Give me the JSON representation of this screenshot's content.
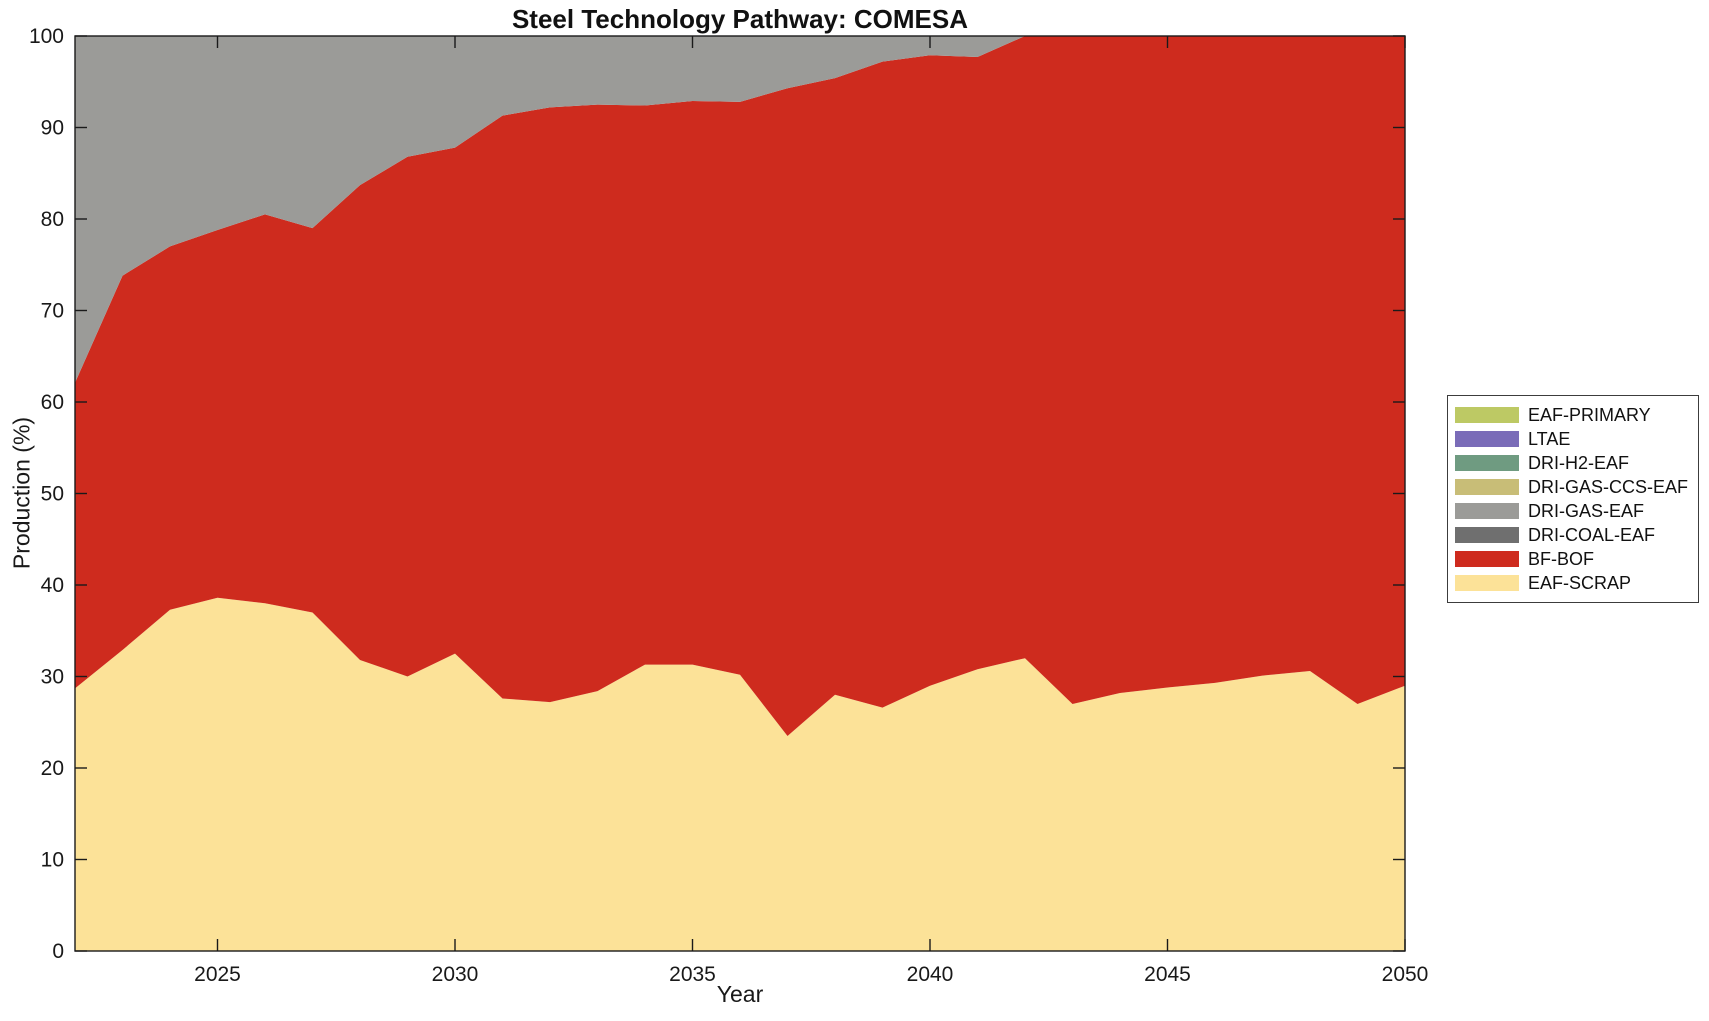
{
  "chart_data": {
    "type": "area",
    "stacked": true,
    "title": "Steel Technology Pathway: COMESA",
    "xlabel": "Year",
    "ylabel": "Production (%)",
    "x_range": [
      2022,
      2050
    ],
    "y_range": [
      0,
      100
    ],
    "x_ticks": [
      2025,
      2030,
      2035,
      2040,
      2045,
      2050
    ],
    "y_ticks": [
      0,
      10,
      20,
      30,
      40,
      50,
      60,
      70,
      80,
      90,
      100
    ],
    "grid": false,
    "legend_position": "right-outside",
    "axis_color": "#1a1a1a",
    "x": [
      2022,
      2023,
      2024,
      2025,
      2026,
      2027,
      2028,
      2029,
      2030,
      2031,
      2032,
      2033,
      2034,
      2035,
      2036,
      2037,
      2038,
      2039,
      2040,
      2041,
      2042,
      2043,
      2044,
      2045,
      2046,
      2047,
      2048,
      2049,
      2050
    ],
    "series": [
      {
        "name": "EAF-PRIMARY",
        "color": "#BDC964",
        "values": [
          0,
          0,
          0,
          0,
          0,
          0,
          0,
          0,
          0,
          0,
          0,
          0,
          0,
          0,
          0,
          0,
          0,
          0,
          0,
          0,
          0,
          0,
          0,
          0,
          0,
          0,
          0,
          0,
          0
        ]
      },
      {
        "name": "LTAE",
        "color": "#7A6CB8",
        "values": [
          0,
          0,
          0,
          0,
          0,
          0,
          0,
          0,
          0,
          0,
          0,
          0,
          0,
          0,
          0,
          0,
          0,
          0,
          0,
          0,
          0,
          0,
          0,
          0,
          0,
          0,
          0,
          0,
          0
        ]
      },
      {
        "name": "DRI-H2-EAF",
        "color": "#6F9B81",
        "values": [
          0,
          0,
          0,
          0,
          0,
          0,
          0,
          0,
          0,
          0,
          0,
          0,
          0,
          0,
          0,
          0,
          0,
          0,
          0,
          0,
          0,
          0,
          0,
          0,
          0,
          0,
          0,
          0,
          0
        ]
      },
      {
        "name": "DRI-GAS-CCS-EAF",
        "color": "#C8BD77",
        "values": [
          0,
          0,
          0,
          0,
          0,
          0,
          0,
          0,
          0,
          0,
          0,
          0,
          0,
          0,
          0,
          0,
          0,
          0,
          0,
          0,
          0,
          0,
          0,
          0,
          0,
          0,
          0,
          0,
          0
        ]
      },
      {
        "name": "DRI-GAS-EAF",
        "color": "#9B9B98",
        "values": [
          37.9,
          26.2,
          23.0,
          21.2,
          19.5,
          21.0,
          16.3,
          13.2,
          12.2,
          8.7,
          7.8,
          7.5,
          7.6,
          7.1,
          7.2,
          5.7,
          4.6,
          2.8,
          2.1,
          2.3,
          0,
          0,
          0,
          0,
          0,
          0,
          0,
          0,
          0
        ]
      },
      {
        "name": "DRI-COAL-EAF",
        "color": "#6F6F6F",
        "values": [
          0,
          0,
          0,
          0,
          0,
          0,
          0,
          0,
          0,
          0,
          0,
          0,
          0,
          0,
          0,
          0,
          0,
          0,
          0,
          0,
          0,
          0,
          0,
          0,
          0,
          0,
          0,
          0,
          0
        ]
      },
      {
        "name": "BF-BOF",
        "color": "#CE2B1E",
        "values": [
          33.4,
          40.9,
          39.7,
          40.2,
          42.5,
          42.0,
          51.9,
          56.8,
          55.3,
          63.7,
          65.0,
          64.1,
          61.1,
          61.6,
          62.6,
          70.8,
          67.4,
          70.6,
          68.9,
          66.9,
          68.0,
          73.0,
          71.8,
          71.2,
          70.7,
          69.9,
          69.4,
          73.0,
          71.0
        ]
      },
      {
        "name": "EAF-SCRAP",
        "color": "#FCE298",
        "values": [
          28.7,
          32.9,
          37.3,
          38.6,
          38.0,
          37.0,
          31.8,
          30.0,
          32.5,
          27.6,
          27.2,
          28.4,
          31.3,
          31.3,
          30.2,
          23.5,
          28.0,
          26.6,
          29.0,
          30.8,
          32.0,
          27.0,
          28.2,
          28.8,
          29.3,
          30.1,
          30.6,
          27.0,
          29.0
        ]
      }
    ]
  }
}
